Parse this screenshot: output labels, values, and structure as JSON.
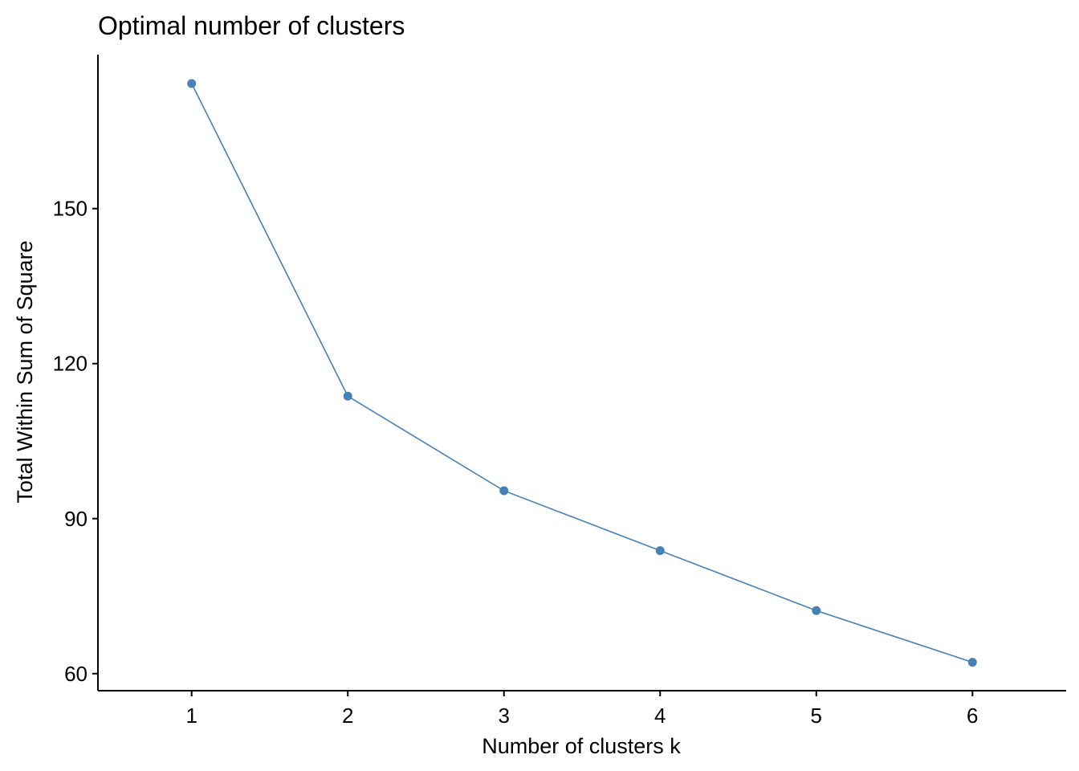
{
  "chart_data": {
    "type": "line",
    "title": "Optimal number of clusters",
    "xlabel": "Number of clusters k",
    "ylabel": "Total Within Sum of Square",
    "x": [
      1,
      2,
      3,
      4,
      5,
      6
    ],
    "series": [
      {
        "values": [
          174.2,
          113.7,
          95.4,
          83.8,
          72.2,
          62.2
        ]
      }
    ],
    "xticks": [
      "1",
      "2",
      "3",
      "4",
      "5",
      "6"
    ],
    "yticks": [
      60,
      90,
      120,
      150
    ],
    "xlim": [
      0.4,
      6.6
    ],
    "ylim": [
      56.7,
      179.8
    ],
    "color": "#4682B4",
    "grid": false,
    "legend": "none"
  }
}
